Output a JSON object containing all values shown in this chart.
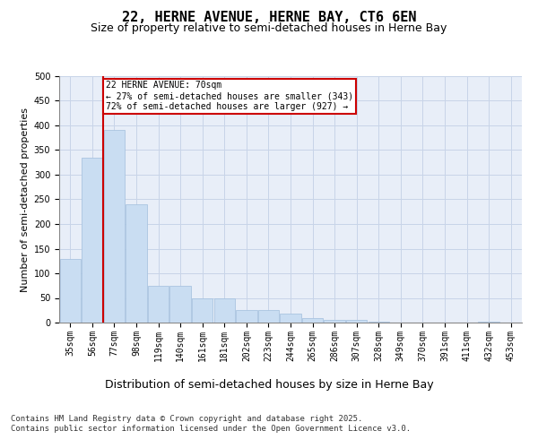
{
  "title1": "22, HERNE AVENUE, HERNE BAY, CT6 6EN",
  "title2": "Size of property relative to semi-detached houses in Herne Bay",
  "xlabel": "Distribution of semi-detached houses by size in Herne Bay",
  "ylabel": "Number of semi-detached properties",
  "categories": [
    "35sqm",
    "56sqm",
    "77sqm",
    "98sqm",
    "119sqm",
    "140sqm",
    "161sqm",
    "181sqm",
    "202sqm",
    "223sqm",
    "244sqm",
    "265sqm",
    "286sqm",
    "307sqm",
    "328sqm",
    "349sqm",
    "370sqm",
    "391sqm",
    "411sqm",
    "432sqm",
    "453sqm"
  ],
  "values": [
    130,
    335,
    390,
    240,
    75,
    75,
    50,
    50,
    25,
    25,
    18,
    9,
    6,
    6,
    2,
    0,
    0,
    0,
    0,
    2,
    0
  ],
  "bar_color": "#c9ddf2",
  "bar_edge_color": "#aac4e0",
  "vline_color": "#cc0000",
  "annotation_text": "22 HERNE AVENUE: 70sqm\n← 27% of semi-detached houses are smaller (343)\n72% of semi-detached houses are larger (927) →",
  "annotation_box_color": "white",
  "annotation_box_edge": "#cc0000",
  "ylim": [
    0,
    500
  ],
  "yticks": [
    0,
    50,
    100,
    150,
    200,
    250,
    300,
    350,
    400,
    450,
    500
  ],
  "grid_color": "#c8d4e8",
  "background_color": "#e8eef8",
  "footer": "Contains HM Land Registry data © Crown copyright and database right 2025.\nContains public sector information licensed under the Open Government Licence v3.0.",
  "title1_fontsize": 11,
  "title2_fontsize": 9,
  "xlabel_fontsize": 9,
  "ylabel_fontsize": 8,
  "tick_fontsize": 7,
  "footer_fontsize": 6.5
}
